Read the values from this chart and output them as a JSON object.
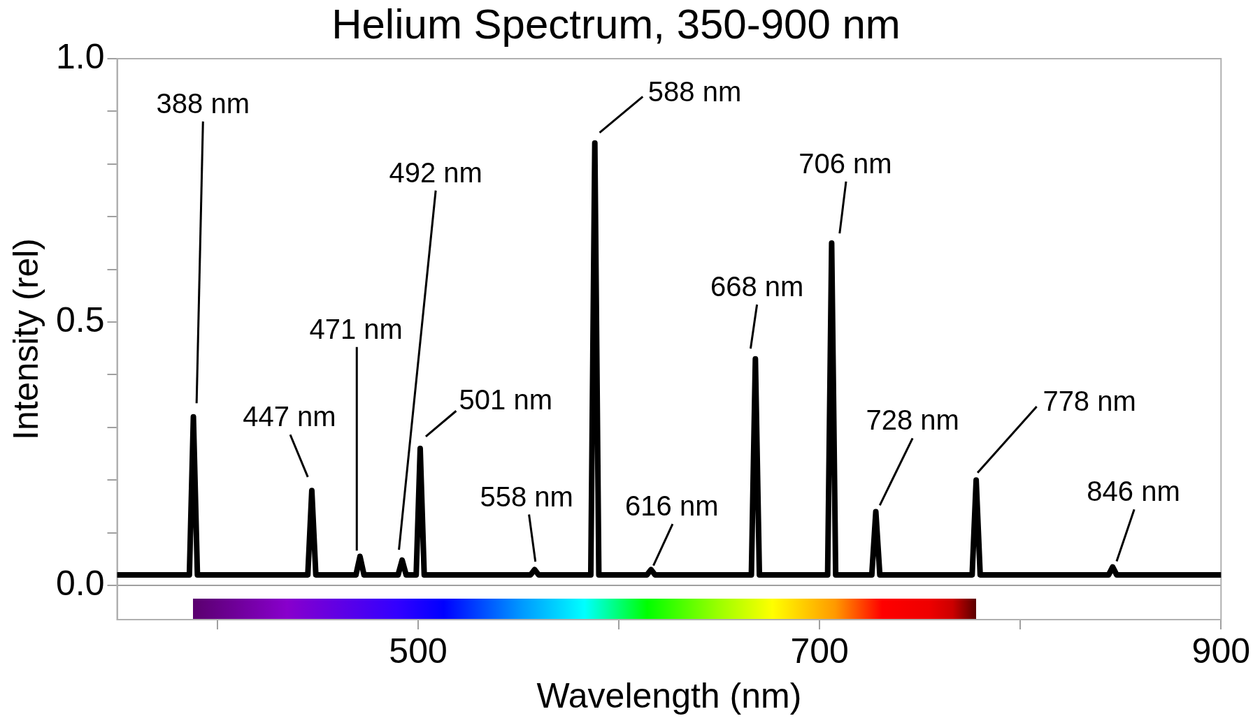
{
  "chart_data": {
    "type": "line",
    "title": "Helium Spectrum, 350-900 nm",
    "xlabel": "Wavelength (nm)",
    "ylabel": "Intensity (rel)",
    "x": [
      350,
      386,
      388,
      390,
      445,
      447,
      449,
      469,
      471,
      473,
      490,
      492,
      494,
      499,
      501,
      503,
      556,
      558,
      560,
      586,
      588,
      590,
      614,
      616,
      618,
      666,
      668,
      670,
      704,
      706,
      708,
      726,
      728,
      730,
      776,
      778,
      780,
      844,
      846,
      848,
      900
    ],
    "series": [
      {
        "color": "#000000",
        "values": [
          0.02,
          0.02,
          0.32,
          0.02,
          0.02,
          0.18,
          0.02,
          0.02,
          0.055,
          0.02,
          0.02,
          0.048,
          0.02,
          0.02,
          0.26,
          0.02,
          0.02,
          0.03,
          0.02,
          0.02,
          0.84,
          0.02,
          0.02,
          0.03,
          0.02,
          0.02,
          0.43,
          0.02,
          0.02,
          0.65,
          0.02,
          0.02,
          0.14,
          0.02,
          0.02,
          0.2,
          0.02,
          0.02,
          0.035,
          0.02,
          0.02
        ]
      }
    ],
    "xlim": [
      350,
      900
    ],
    "xticks": [
      {
        "value": 400,
        "label": null
      },
      500,
      {
        "value": 600,
        "label": null
      },
      700,
      {
        "value": 800,
        "label": null
      },
      900
    ],
    "ylim": [
      -0.065,
      1.0
    ],
    "yticks": [
      {
        "value": 0,
        "label": "0.0"
      },
      {
        "value": 0.1,
        "label": null
      },
      {
        "value": 0.2,
        "label": null
      },
      {
        "value": 0.3,
        "label": null
      },
      {
        "value": 0.4,
        "label": null
      },
      0.5,
      {
        "value": 0.6,
        "label": null
      },
      {
        "value": 0.7,
        "label": null
      },
      {
        "value": 0.8,
        "label": null
      },
      {
        "value": 0.9,
        "label": null
      },
      {
        "value": 1,
        "label": "1.0"
      }
    ],
    "ref_lines": [
      {
        "axis": "y",
        "value": 0,
        "color": "#a0a0a0"
      }
    ],
    "grid": false,
    "legend": false,
    "marker": "none",
    "line_style": "solid",
    "annotations": [
      "388 nm",
      {
        "text": "447 nm",
        "x": 447,
        "y": 0.18
      },
      "471 nm",
      "492 nm",
      {
        "text": "501 nm",
        "x": 501,
        "y": 0.26
      },
      {
        "text": "558 nm",
        "x": 558,
        "y": 0.03
      },
      {
        "text": "588 nm",
        "x": 588,
        "y": 0.84
      },
      {
        "text": "616 nm",
        "x": 616,
        "y": 0.03
      },
      {
        "text": "668 nm",
        "x": 668,
        "y": 0.43
      },
      {
        "text": "706 nm",
        "x": 706,
        "y": 0.65
      },
      {
        "text": "728 nm",
        "x": 728,
        "y": 0.14
      },
      "778 nm",
      {
        "text": "846 nm",
        "x": 846,
        "y": 0.035
      }
    ]
  }
}
